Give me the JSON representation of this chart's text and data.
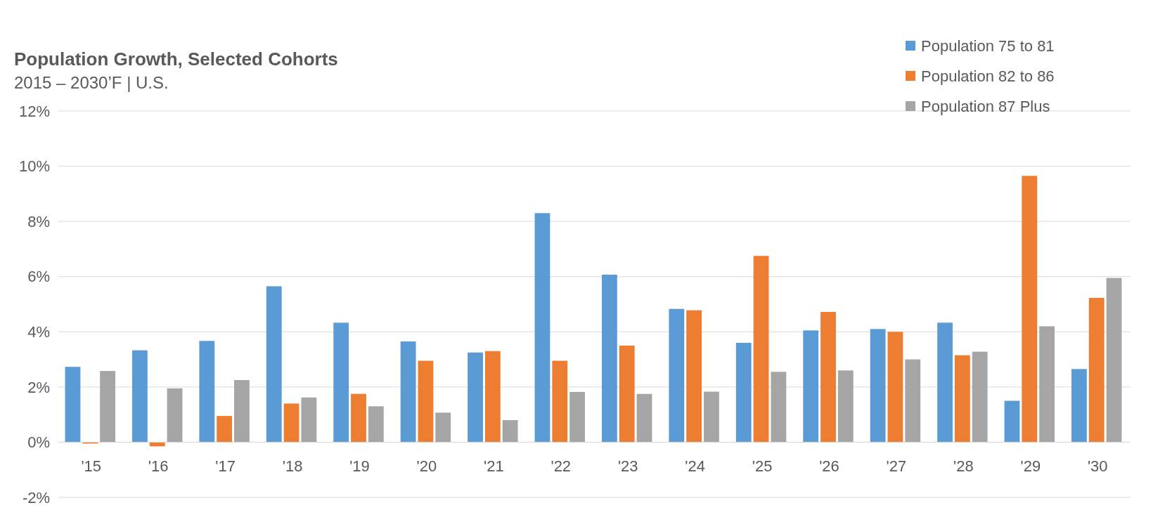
{
  "chart_data": {
    "type": "bar",
    "title": "Population Growth, Selected Cohorts",
    "subtitle": "2015 – 2030’F | U.S.",
    "categories": [
      "'15",
      "'16",
      "'17",
      "'18",
      "'19",
      "'20",
      "'21",
      "'22",
      "'23",
      "'24",
      "'25",
      "'26",
      "'27",
      "'28",
      "'29",
      "'30"
    ],
    "series": [
      {
        "name": "Population 75 to 81",
        "color": "#5b9bd5",
        "values": [
          2.73,
          3.33,
          3.67,
          5.65,
          4.33,
          3.65,
          3.25,
          8.3,
          6.07,
          4.83,
          3.6,
          4.05,
          4.1,
          4.33,
          1.5,
          2.65
        ]
      },
      {
        "name": "Population 82 to 86",
        "color": "#ed7d31",
        "values": [
          -0.05,
          -0.15,
          0.95,
          1.4,
          1.75,
          2.95,
          3.3,
          2.95,
          3.5,
          4.78,
          6.75,
          4.72,
          4.0,
          3.15,
          9.65,
          5.23
        ]
      },
      {
        "name": "Population 87 Plus",
        "color": "#a5a5a5",
        "values": [
          2.58,
          1.95,
          2.25,
          1.62,
          1.3,
          1.07,
          0.8,
          1.82,
          1.75,
          1.83,
          2.55,
          2.6,
          3.0,
          3.28,
          4.2,
          5.95
        ]
      }
    ],
    "ylim": [
      -2,
      12
    ],
    "yticks": [
      {
        "value": -2,
        "label": "-2%"
      },
      {
        "value": 0,
        "label": "0%"
      },
      {
        "value": 2,
        "label": "2%"
      },
      {
        "value": 4,
        "label": "4%"
      },
      {
        "value": 6,
        "label": "6%"
      },
      {
        "value": 8,
        "label": "8%"
      },
      {
        "value": 10,
        "label": "10%"
      },
      {
        "value": 12,
        "label": "12%"
      }
    ],
    "grid": "y",
    "legend": "top right"
  }
}
